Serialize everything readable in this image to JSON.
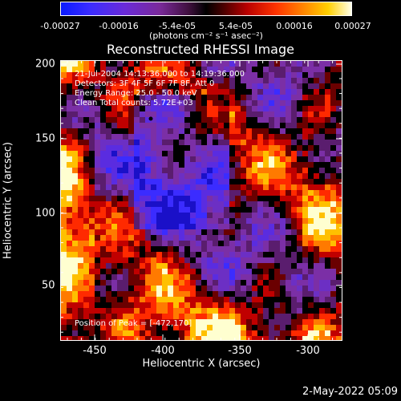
{
  "colorbar": {
    "ticks": [
      "-0.00027",
      "-0.00016",
      "-5.4e-05",
      "5.4e-05",
      "0.00016",
      "0.00027"
    ],
    "units": "(photons cm⁻² s⁻¹ asec⁻²)"
  },
  "title": "Reconstructed RHESSI Image",
  "info": {
    "time_range": "21-Jul-2004 14:13:36.000 to 14:19:36.000",
    "detectors": "Detectors: 3F 4F 5F 6F 7F 8F, Att 0",
    "energy": "Energy Range: 25.0 - 50.0 keV",
    "clean": "Clean     Total counts: 5.72E+03",
    "peak": "Position of Peak = [-472,170]"
  },
  "x_axis": {
    "label": "Heliocentric X (arcsec)",
    "ticks": [
      "-450",
      "-400",
      "-350",
      "-300"
    ]
  },
  "y_axis": {
    "label": "Heliocentric Y (arcsec)",
    "ticks": [
      "200",
      "150",
      "100",
      "50"
    ]
  },
  "timestamp": "2-May-2022 05:09"
}
